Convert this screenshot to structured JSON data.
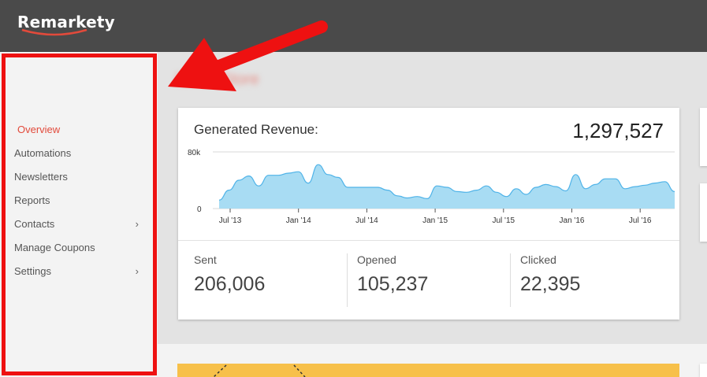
{
  "header": {
    "logo_text": "Remarkety",
    "brand_color": "#4a4a4a",
    "accent_color": "#e24a3b"
  },
  "sidebar": {
    "items": [
      {
        "label": "Overview",
        "active": true,
        "icon": ""
      },
      {
        "label": "Automations",
        "icon": ""
      },
      {
        "label": "Newsletters",
        "icon": ""
      },
      {
        "label": "Reports",
        "icon": ""
      },
      {
        "label": "Contacts",
        "icon": "chevron-right-icon"
      },
      {
        "label": "Manage Coupons",
        "icon": ""
      },
      {
        "label": "Settings",
        "icon": "chevron-right-icon"
      }
    ],
    "chevron_glyph": "›",
    "highlight_color": "#ee1111"
  },
  "main": {
    "store_title": "Demo Store",
    "revenue": {
      "label": "Generated Revenue:",
      "value": "1,297,527"
    },
    "stats": [
      {
        "label": "Sent",
        "value": "206,006"
      },
      {
        "label": "Opened",
        "value": "105,237"
      },
      {
        "label": "Clicked",
        "value": "22,395"
      }
    ]
  },
  "chart_data": {
    "type": "area",
    "yticks": [
      "80k",
      "0"
    ],
    "ylim": [
      0,
      80000
    ],
    "xticks": [
      "Jul '13",
      "Jan '14",
      "Jul '14",
      "Jan '15",
      "Jul '15",
      "Jan '16",
      "Jul '16"
    ],
    "series": [
      {
        "values": [
          12000,
          26000,
          40000,
          46000,
          32000,
          47000,
          47000,
          50000,
          52000,
          36000,
          62000,
          48000,
          44000,
          30000,
          30000,
          30000,
          30000,
          26000,
          18000,
          15000,
          17000,
          14000,
          32000,
          30000,
          24000,
          23000,
          26000,
          32000,
          23000,
          17000,
          28000,
          20000,
          30000,
          34000,
          31000,
          25000,
          48000,
          28000,
          34000,
          42000,
          42000,
          28000,
          31000,
          33000,
          36000,
          38000,
          24000
        ],
        "color": "#a8dcf3",
        "stroke": "#4fb3e8"
      }
    ]
  }
}
